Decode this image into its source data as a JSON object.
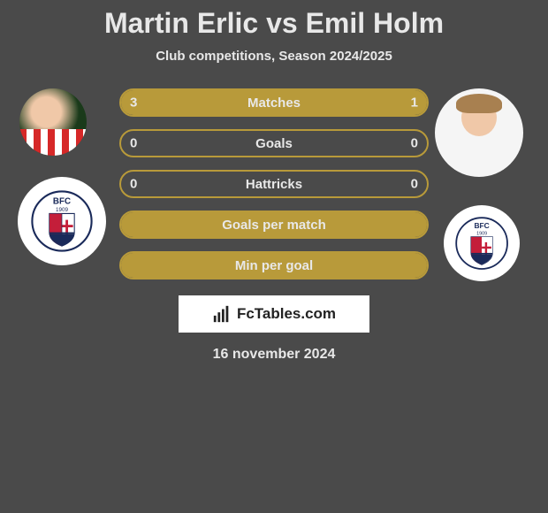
{
  "title": {
    "player1": "Martin Erlic",
    "vs": "vs",
    "player2": "Emil Holm"
  },
  "subtitle": "Club competitions, Season 2024/2025",
  "colors": {
    "bar_fill": "#b89a3a",
    "bar_border": "#b89a3a",
    "background": "#4a4a4a",
    "text": "#e8e8e8",
    "brand_bg": "#ffffff"
  },
  "stats": [
    {
      "label": "Matches",
      "left_val": "3",
      "right_val": "1",
      "left_pct": 75,
      "right_pct": 25,
      "full": true
    },
    {
      "label": "Goals",
      "left_val": "0",
      "right_val": "0",
      "left_pct": 0,
      "right_pct": 0,
      "full": false
    },
    {
      "label": "Hattricks",
      "left_val": "0",
      "right_val": "0",
      "left_pct": 0,
      "right_pct": 0,
      "full": false
    },
    {
      "label": "Goals per match",
      "left_val": "",
      "right_val": "",
      "left_pct": 0,
      "right_pct": 0,
      "full": true
    },
    {
      "label": "Min per goal",
      "left_val": "",
      "right_val": "",
      "left_pct": 0,
      "right_pct": 0,
      "full": true
    }
  ],
  "brand": "FcTables.com",
  "date": "16 november 2024",
  "club_badge": {
    "bg": "#ffffff",
    "shield_border": "#1a2a5a",
    "shield_fill_top": "#c41e3a",
    "shield_fill_bottom": "#1a2a5a",
    "cross": "#c41e3a",
    "text": "BFC",
    "year": "1909"
  }
}
